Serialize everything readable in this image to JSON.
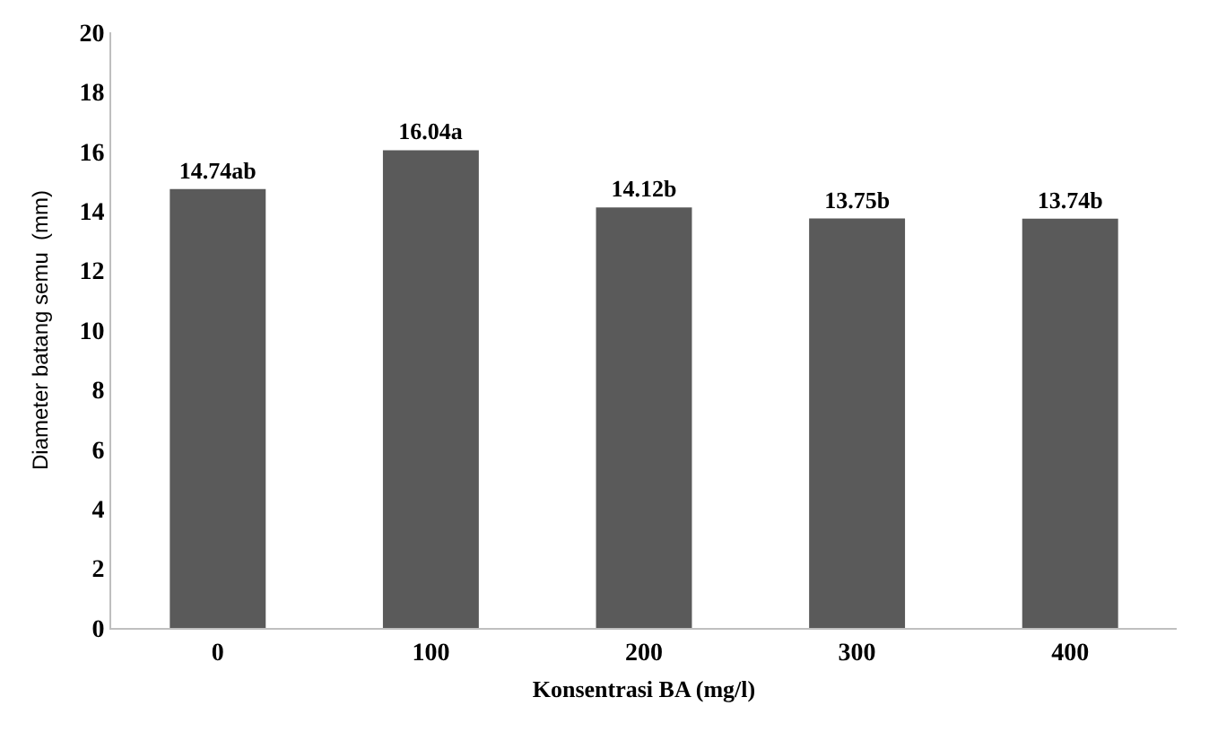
{
  "chart_data": {
    "type": "bar",
    "xlabel": "Konsentrasi BA (mg/l)",
    "ylabel": "Diameter batang semu  (mm)",
    "categories": [
      "0",
      "100",
      "200",
      "300",
      "400"
    ],
    "values": [
      14.74,
      16.04,
      14.12,
      13.75,
      13.74
    ],
    "value_labels": [
      "14.74ab",
      "16.04a",
      "14.12b",
      "13.75b",
      "13.74b"
    ],
    "color": "#5a5a5a",
    "ylim": [
      0,
      20
    ],
    "yticks": [
      0,
      2,
      4,
      6,
      8,
      10,
      12,
      14,
      16,
      18,
      20
    ]
  }
}
